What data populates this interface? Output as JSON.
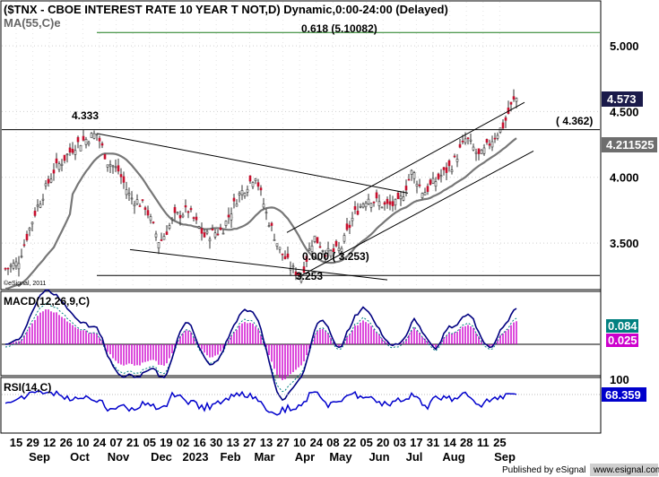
{
  "chart_data": [
    {
      "type": "candlestick",
      "title": "($TNX - CBOE INTEREST RATE 10 YEAR T NOT,D) Dynamic,0:00-24:00 (Delayed)",
      "subtitle": "MA(55,C)e",
      "y_ticks": [
        "5.000",
        "4.500",
        "4.000",
        "3.500"
      ],
      "y_tick_values": [
        5.0,
        4.5,
        4.0,
        3.5
      ],
      "ylim": [
        3.18,
        5.28
      ],
      "x_day_labels": [
        "15",
        "29",
        "12",
        "26",
        "10",
        "24",
        "07",
        "21",
        "05",
        "19",
        "02",
        "16",
        "30",
        "13",
        "27",
        "13",
        "27",
        "10",
        "24",
        "08",
        "22",
        "05",
        "20",
        "03",
        "17",
        "31",
        "14",
        "28",
        "11",
        "25"
      ],
      "x_month_labels": [
        "Sep",
        "Oct",
        "Nov",
        "Dec",
        "2023",
        "Feb",
        "Mar",
        "Apr",
        "May",
        "Jun",
        "Jul",
        "Aug",
        "Sep"
      ],
      "key_points": [
        {
          "label": "4.333",
          "value": 4.333
        },
        {
          "label": "3.253",
          "value": 3.253
        }
      ],
      "fib_levels": [
        {
          "label": "0.618 (5.10082)",
          "value": 5.10082,
          "color": "#1a7a1a"
        },
        {
          "label": "0.000 ( 3.253)",
          "value": 3.253,
          "color": "#000000"
        }
      ],
      "horizontal_lines": [
        {
          "label": "( 4.362)",
          "value": 4.362
        }
      ],
      "price_tags": [
        {
          "label": "4.573",
          "value": 4.573,
          "style": "dark"
        },
        {
          "label": "4.211525",
          "value": 4.211525,
          "style": "gray"
        }
      ],
      "ma_color": "#777777",
      "candle_color": "#c8102e",
      "watermark": "©eSignal, 2011"
    },
    {
      "type": "line",
      "name": "MACD(12,26,9,C)",
      "values_labels": [
        "0.084",
        "0.025"
      ],
      "series_colors": {
        "macd": "#000080",
        "signal": "#008080",
        "histogram": "#cc00cc"
      },
      "tag_colors": {
        "signal": "#008080",
        "histogram": "#cc00cc"
      }
    },
    {
      "type": "line",
      "name": "RSI(14,C)",
      "y_ticks": [
        "100"
      ],
      "value_label": "68.359",
      "line_color": "#0000cc"
    }
  ],
  "footer": {
    "published": "Published by eSignal",
    "source": "www.esignal.com"
  }
}
